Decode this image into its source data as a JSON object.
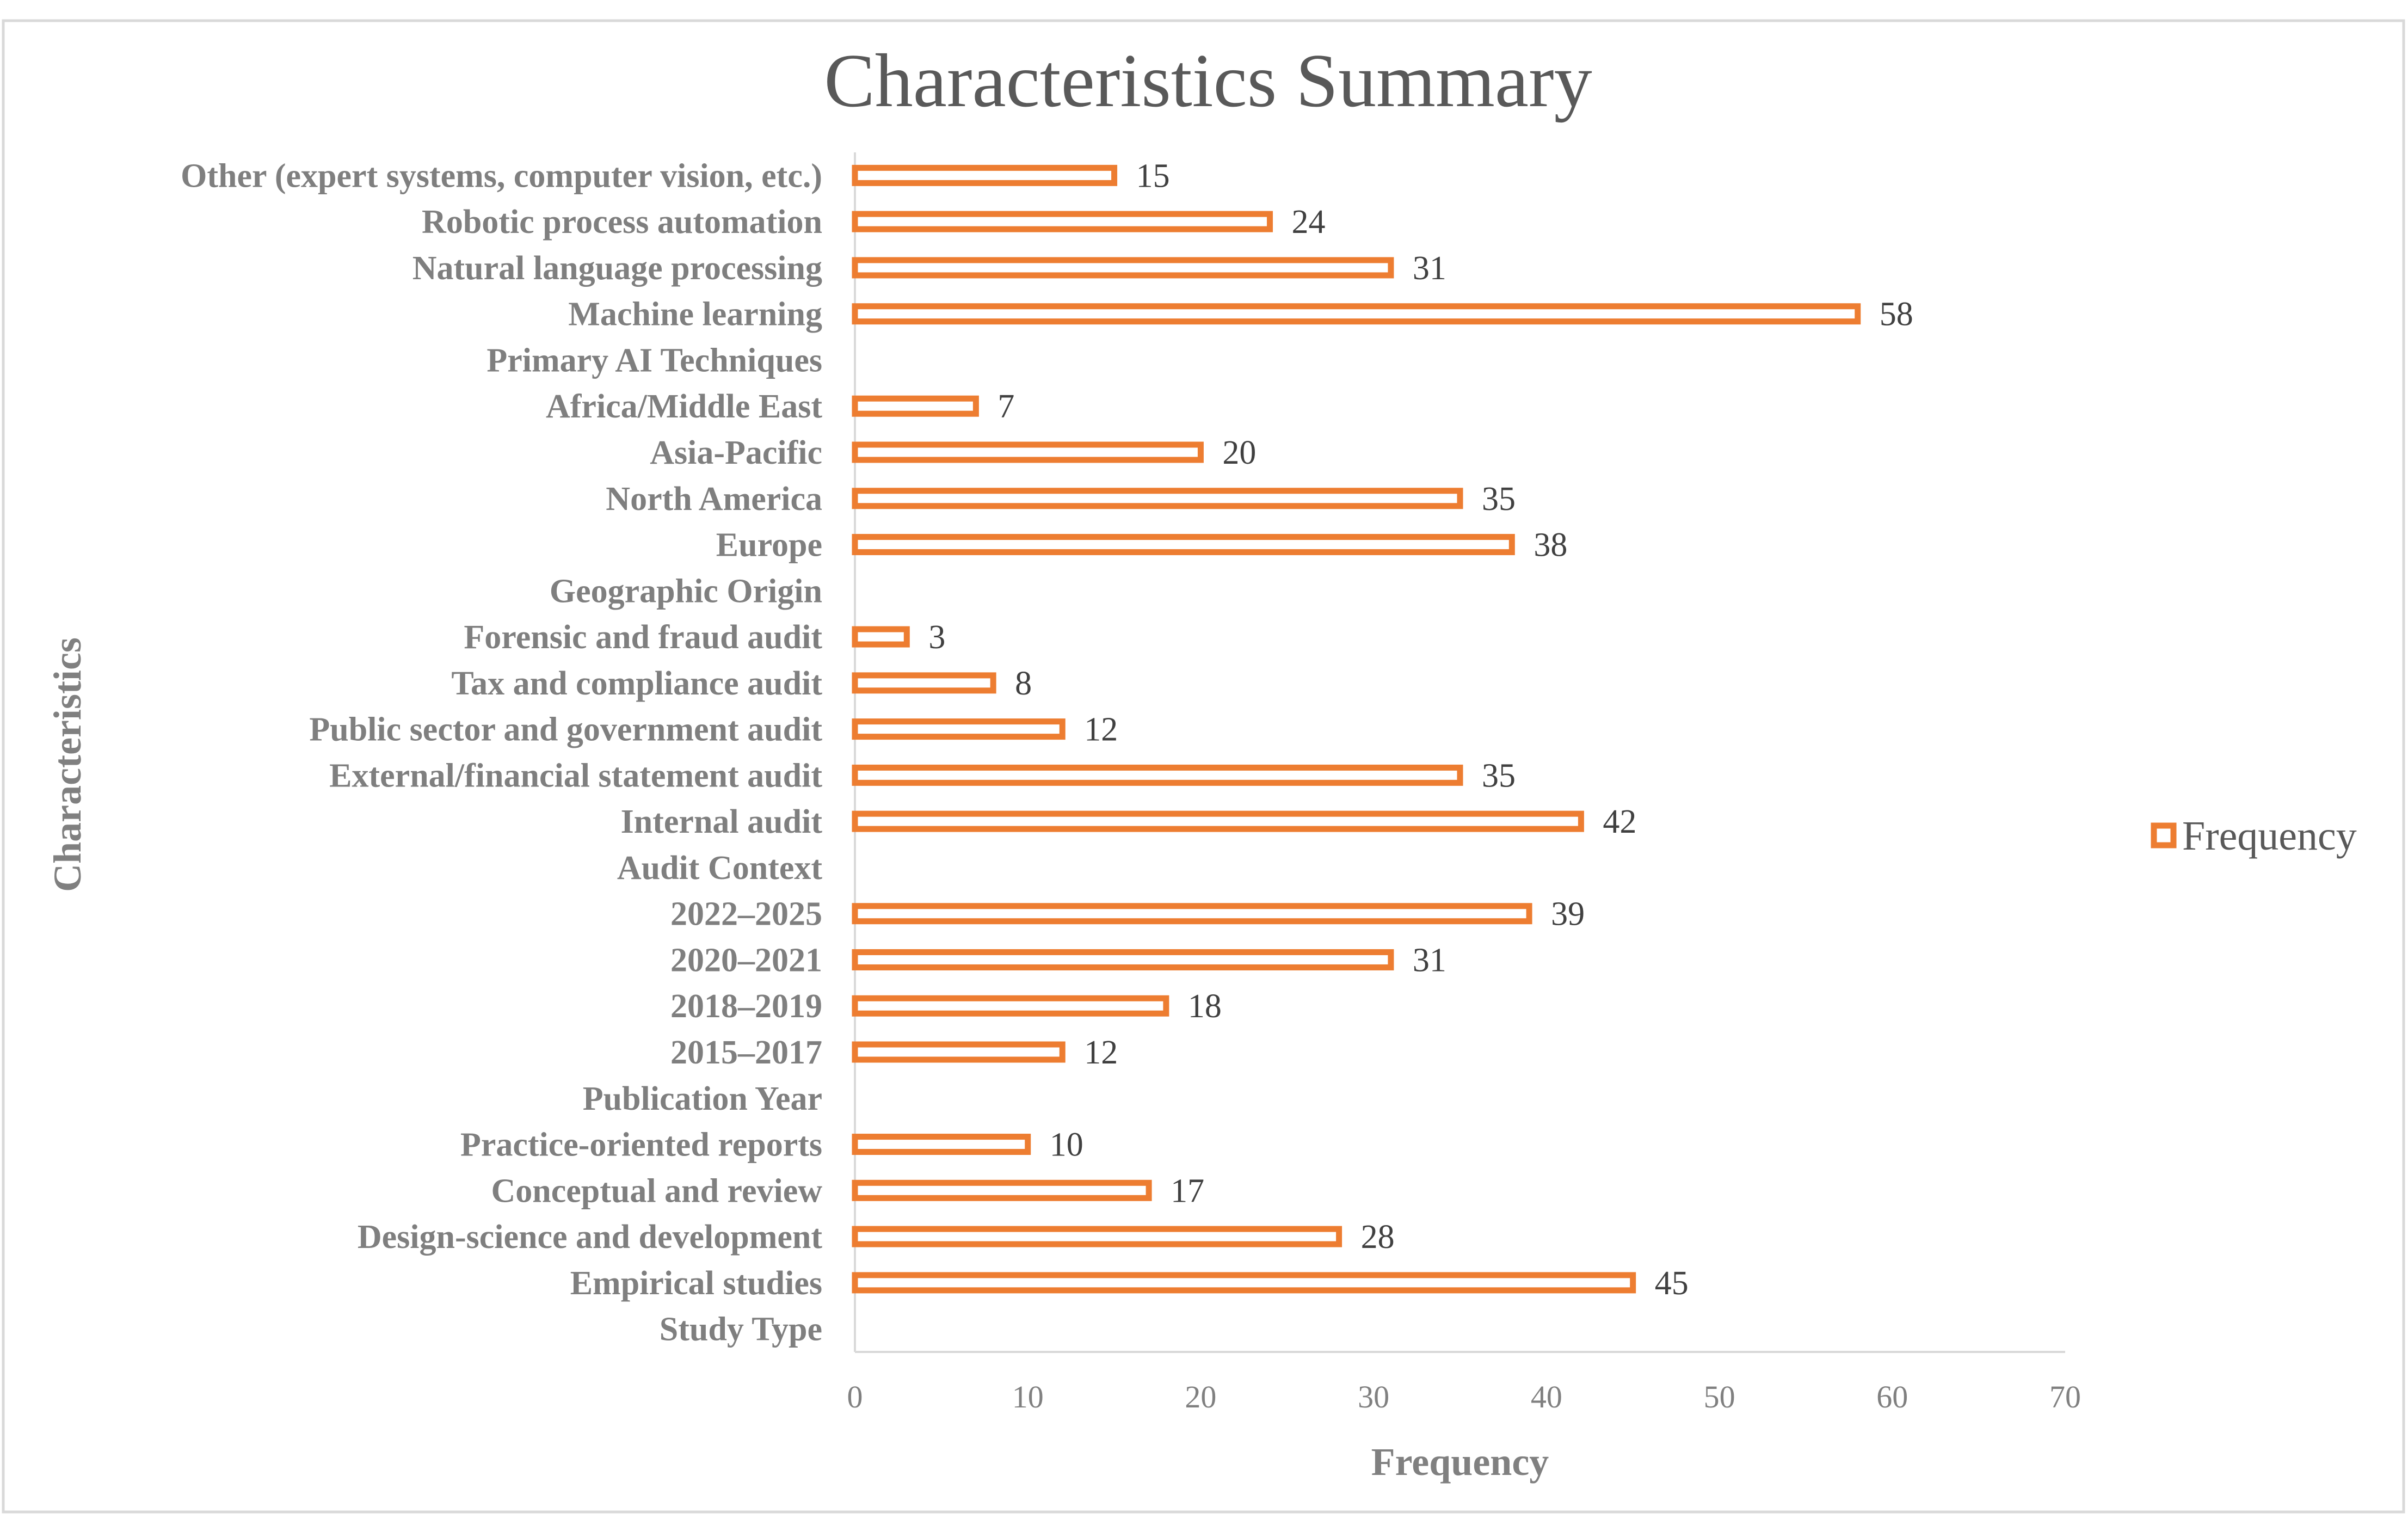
{
  "chart_data": {
    "type": "bar",
    "orientation": "horizontal",
    "title": "Characteristics Summary",
    "xlabel": "Frequency",
    "ylabel": "Characteristics",
    "xlim": [
      0,
      70
    ],
    "xticks": [
      0,
      10,
      20,
      30,
      40,
      50,
      60,
      70
    ],
    "grid": false,
    "legend_position": "right",
    "series": [
      {
        "name": "Frequency",
        "color": "#ed7d31",
        "fill": "#ffffff"
      }
    ],
    "categories": [
      {
        "label": "Study Type",
        "value": null
      },
      {
        "label": "Empirical studies",
        "value": 45
      },
      {
        "label": "Design-science and development",
        "value": 28
      },
      {
        "label": "Conceptual and review",
        "value": 17
      },
      {
        "label": "Practice-oriented reports",
        "value": 10
      },
      {
        "label": "Publication Year",
        "value": null
      },
      {
        "label": "2015–2017",
        "value": 12
      },
      {
        "label": "2018–2019",
        "value": 18
      },
      {
        "label": "2020–2021",
        "value": 31
      },
      {
        "label": "2022–2025",
        "value": 39
      },
      {
        "label": "Audit Context",
        "value": null
      },
      {
        "label": "Internal audit",
        "value": 42
      },
      {
        "label": "External/financial statement audit",
        "value": 35
      },
      {
        "label": "Public sector and government audit",
        "value": 12
      },
      {
        "label": "Tax and compliance audit",
        "value": 8
      },
      {
        "label": "Forensic and fraud audit",
        "value": 3
      },
      {
        "label": "Geographic Origin",
        "value": null
      },
      {
        "label": "Europe",
        "value": 38
      },
      {
        "label": "North America",
        "value": 35
      },
      {
        "label": "Asia-Pacific",
        "value": 20
      },
      {
        "label": "Africa/Middle East",
        "value": 7
      },
      {
        "label": "Primary AI Techniques",
        "value": null
      },
      {
        "label": "Machine learning",
        "value": 58
      },
      {
        "label": "Natural language processing",
        "value": 31
      },
      {
        "label": "Robotic process automation",
        "value": 24
      },
      {
        "label": "Other (expert systems, computer vision, etc.)",
        "value": 15
      }
    ]
  }
}
